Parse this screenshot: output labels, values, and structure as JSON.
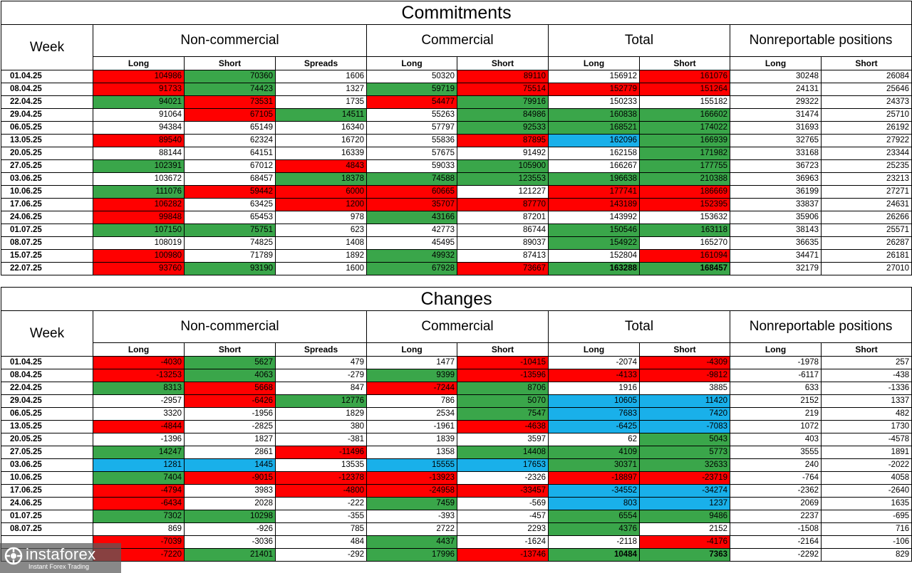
{
  "commitments": {
    "title": "Commitments",
    "week_header": "Week",
    "groups": [
      "Non-commercial",
      "Commercial",
      "Total",
      "Nonreportable positions"
    ],
    "subheaders": [
      "Long",
      "Short",
      "Spreads",
      "Long",
      "Short",
      "Long",
      "Short",
      "Long",
      "Short"
    ],
    "rows": [
      {
        "week": "01.04.25",
        "values": [
          "104986",
          "70360",
          "1606",
          "50320",
          "89110",
          "156912",
          "161076",
          "30248",
          "26084"
        ],
        "colors": [
          "r",
          "g",
          "w",
          "w",
          "r",
          "w",
          "r",
          "w",
          "w"
        ]
      },
      {
        "week": "08.04.25",
        "values": [
          "91733",
          "74423",
          "1327",
          "59719",
          "75514",
          "152779",
          "151264",
          "24131",
          "25646"
        ],
        "colors": [
          "r",
          "g",
          "w",
          "g",
          "r",
          "r",
          "r",
          "w",
          "w"
        ]
      },
      {
        "week": "22.04.25",
        "values": [
          "94021",
          "73531",
          "1735",
          "54477",
          "79916",
          "150233",
          "155182",
          "29322",
          "24373"
        ],
        "colors": [
          "g",
          "r",
          "w",
          "r",
          "g",
          "w",
          "w",
          "w",
          "w"
        ]
      },
      {
        "week": "29.04.25",
        "values": [
          "91064",
          "67105",
          "14511",
          "55263",
          "84986",
          "160838",
          "166602",
          "31474",
          "25710"
        ],
        "colors": [
          "w",
          "r",
          "g",
          "w",
          "g",
          "g",
          "g",
          "w",
          "w"
        ]
      },
      {
        "week": "06.05.25",
        "values": [
          "94384",
          "65149",
          "16340",
          "57797",
          "92533",
          "168521",
          "174022",
          "31693",
          "26192"
        ],
        "colors": [
          "w",
          "w",
          "w",
          "w",
          "g",
          "g",
          "g",
          "w",
          "w"
        ]
      },
      {
        "week": "13.05.25",
        "values": [
          "89540",
          "62324",
          "16720",
          "55836",
          "87895",
          "162096",
          "166939",
          "32765",
          "27922"
        ],
        "colors": [
          "r",
          "w",
          "w",
          "w",
          "r",
          "b",
          "g",
          "w",
          "w"
        ]
      },
      {
        "week": "20.05.25",
        "values": [
          "88144",
          "64151",
          "16339",
          "57675",
          "91492",
          "162158",
          "171982",
          "33168",
          "23344"
        ],
        "colors": [
          "w",
          "w",
          "w",
          "w",
          "w",
          "w",
          "g",
          "w",
          "w"
        ]
      },
      {
        "week": "27.05.25",
        "values": [
          "102391",
          "67012",
          "4843",
          "59033",
          "105900",
          "166267",
          "177755",
          "36723",
          "25235"
        ],
        "colors": [
          "g",
          "w",
          "r",
          "w",
          "g",
          "w",
          "g",
          "w",
          "w"
        ]
      },
      {
        "week": "03.06.25",
        "values": [
          "103672",
          "68457",
          "18378",
          "74588",
          "123553",
          "196638",
          "210388",
          "36963",
          "23213"
        ],
        "colors": [
          "w",
          "w",
          "g",
          "g",
          "g",
          "g",
          "g",
          "w",
          "w"
        ]
      },
      {
        "week": "10.06.25",
        "values": [
          "111076",
          "59442",
          "6000",
          "60665",
          "121227",
          "177741",
          "186669",
          "36199",
          "27271"
        ],
        "colors": [
          "g",
          "r",
          "r",
          "r",
          "w",
          "r",
          "r",
          "w",
          "w"
        ]
      },
      {
        "week": "17.06.25",
        "values": [
          "106282",
          "63425",
          "1200",
          "35707",
          "87770",
          "143189",
          "152395",
          "33837",
          "24631"
        ],
        "colors": [
          "r",
          "w",
          "r",
          "r",
          "r",
          "r",
          "r",
          "w",
          "w"
        ]
      },
      {
        "week": "24.06.25",
        "values": [
          "99848",
          "65453",
          "978",
          "43166",
          "87201",
          "143992",
          "153632",
          "35906",
          "26266"
        ],
        "colors": [
          "r",
          "w",
          "w",
          "g",
          "w",
          "w",
          "w",
          "w",
          "w"
        ]
      },
      {
        "week": "01.07.25",
        "values": [
          "107150",
          "75751",
          "623",
          "42773",
          "86744",
          "150546",
          "163118",
          "38143",
          "25571"
        ],
        "colors": [
          "g",
          "g",
          "w",
          "w",
          "w",
          "g",
          "g",
          "w",
          "w"
        ]
      },
      {
        "week": "08.07.25",
        "values": [
          "108019",
          "74825",
          "1408",
          "45495",
          "89037",
          "154922",
          "165270",
          "36635",
          "26287"
        ],
        "colors": [
          "w",
          "w",
          "w",
          "w",
          "w",
          "g",
          "w",
          "w",
          "w"
        ]
      },
      {
        "week": "15.07.25",
        "values": [
          "100980",
          "71789",
          "1892",
          "49932",
          "87413",
          "152804",
          "161094",
          "34471",
          "26181"
        ],
        "colors": [
          "r",
          "w",
          "w",
          "g",
          "w",
          "w",
          "r",
          "w",
          "w"
        ]
      },
      {
        "week": "22.07.25",
        "values": [
          "93760",
          "93190",
          "1600",
          "67928",
          "73667",
          "163288",
          "168457",
          "32179",
          "27010"
        ],
        "colors": [
          "r",
          "g",
          "w",
          "g",
          "r",
          "g",
          "g",
          "w",
          "w"
        ],
        "bold_total": true
      }
    ]
  },
  "changes": {
    "title": "Changes",
    "week_header": "Week",
    "groups": [
      "Non-commercial",
      "Commercial",
      "Total",
      "Nonreportable positions"
    ],
    "subheaders": [
      "Long",
      "Short",
      "Spreads",
      "Long",
      "Short",
      "Long",
      "Short",
      "Long",
      "Short"
    ],
    "rows": [
      {
        "week": "01.04.25",
        "values": [
          "-4030",
          "5627",
          "479",
          "1477",
          "-10415",
          "-2074",
          "-4309",
          "-1978",
          "257"
        ],
        "colors": [
          "r",
          "g",
          "w",
          "w",
          "r",
          "w",
          "r",
          "w",
          "w"
        ]
      },
      {
        "week": "08.04.25",
        "values": [
          "-13253",
          "4063",
          "-279",
          "9399",
          "-13596",
          "-4133",
          "-9812",
          "-6117",
          "-438"
        ],
        "colors": [
          "r",
          "g",
          "w",
          "g",
          "r",
          "r",
          "r",
          "w",
          "w"
        ]
      },
      {
        "week": "22.04.25",
        "values": [
          "8313",
          "5668",
          "847",
          "-7244",
          "8706",
          "1916",
          "3885",
          "633",
          "-1336"
        ],
        "colors": [
          "g",
          "r",
          "w",
          "r",
          "g",
          "w",
          "w",
          "w",
          "w"
        ]
      },
      {
        "week": "29.04.25",
        "values": [
          "-2957",
          "-6426",
          "12776",
          "786",
          "5070",
          "10605",
          "11420",
          "2152",
          "1337"
        ],
        "colors": [
          "w",
          "r",
          "g",
          "w",
          "g",
          "b",
          "b",
          "w",
          "w"
        ]
      },
      {
        "week": "06.05.25",
        "values": [
          "3320",
          "-1956",
          "1829",
          "2534",
          "7547",
          "7683",
          "7420",
          "219",
          "482"
        ],
        "colors": [
          "w",
          "w",
          "w",
          "w",
          "g",
          "b",
          "b",
          "w",
          "w"
        ]
      },
      {
        "week": "13.05.25",
        "values": [
          "-4844",
          "-2825",
          "380",
          "-1961",
          "-4638",
          "-6425",
          "-7083",
          "1072",
          "1730"
        ],
        "colors": [
          "r",
          "w",
          "w",
          "w",
          "r",
          "b",
          "b",
          "w",
          "w"
        ]
      },
      {
        "week": "20.05.25",
        "values": [
          "-1396",
          "1827",
          "-381",
          "1839",
          "3597",
          "62",
          "5043",
          "403",
          "-4578"
        ],
        "colors": [
          "w",
          "w",
          "w",
          "w",
          "w",
          "w",
          "g",
          "w",
          "w"
        ]
      },
      {
        "week": "27.05.25",
        "values": [
          "14247",
          "2861",
          "-11496",
          "1358",
          "14408",
          "4109",
          "5773",
          "3555",
          "1891"
        ],
        "colors": [
          "g",
          "w",
          "r",
          "w",
          "g",
          "g",
          "g",
          "w",
          "w"
        ]
      },
      {
        "week": "03.06.25",
        "values": [
          "1281",
          "1445",
          "13535",
          "15555",
          "17653",
          "30371",
          "32633",
          "240",
          "-2022"
        ],
        "colors": [
          "b",
          "b",
          "w",
          "b",
          "b",
          "g",
          "g",
          "w",
          "w"
        ]
      },
      {
        "week": "10.06.25",
        "values": [
          "7404",
          "-9015",
          "-12378",
          "-13923",
          "-2326",
          "-18897",
          "-23719",
          "-764",
          "4058"
        ],
        "colors": [
          "g",
          "r",
          "r",
          "r",
          "w",
          "r",
          "r",
          "w",
          "w"
        ]
      },
      {
        "week": "17.06.25",
        "values": [
          "-4794",
          "3983",
          "-4800",
          "-24958",
          "-33457",
          "-34552",
          "-34274",
          "-2362",
          "-2640"
        ],
        "colors": [
          "r",
          "w",
          "r",
          "r",
          "r",
          "b",
          "b",
          "w",
          "w"
        ]
      },
      {
        "week": "24.06.25",
        "values": [
          "-6434",
          "2028",
          "-222",
          "7459",
          "-569",
          "803",
          "1237",
          "2069",
          "1635"
        ],
        "colors": [
          "r",
          "w",
          "w",
          "g",
          "w",
          "b",
          "b",
          "w",
          "w"
        ]
      },
      {
        "week": "01.07.25",
        "values": [
          "7302",
          "10298",
          "-355",
          "-393",
          "-457",
          "6554",
          "9486",
          "2237",
          "-695"
        ],
        "colors": [
          "g",
          "g",
          "w",
          "w",
          "w",
          "g",
          "g",
          "w",
          "w"
        ]
      },
      {
        "week": "08.07.25",
        "values": [
          "869",
          "-926",
          "785",
          "2722",
          "2293",
          "4376",
          "2152",
          "-1508",
          "716"
        ],
        "colors": [
          "w",
          "w",
          "w",
          "w",
          "w",
          "g",
          "w",
          "w",
          "w"
        ]
      },
      {
        "week": "",
        "values": [
          "-7039",
          "-3036",
          "484",
          "4437",
          "-1624",
          "-2118",
          "-4176",
          "-2164",
          "-106"
        ],
        "colors": [
          "r",
          "w",
          "w",
          "g",
          "w",
          "w",
          "r",
          "w",
          "w"
        ]
      },
      {
        "week": "",
        "values": [
          "-7220",
          "21401",
          "-292",
          "17996",
          "-13746",
          "10484",
          "7363",
          "-2292",
          "829"
        ],
        "colors": [
          "r",
          "g",
          "w",
          "g",
          "r",
          "g",
          "g",
          "w",
          "w"
        ],
        "bold_total": true
      }
    ]
  },
  "watermark": {
    "brand": "instaforex",
    "tagline": "Instant Forex Trading"
  }
}
